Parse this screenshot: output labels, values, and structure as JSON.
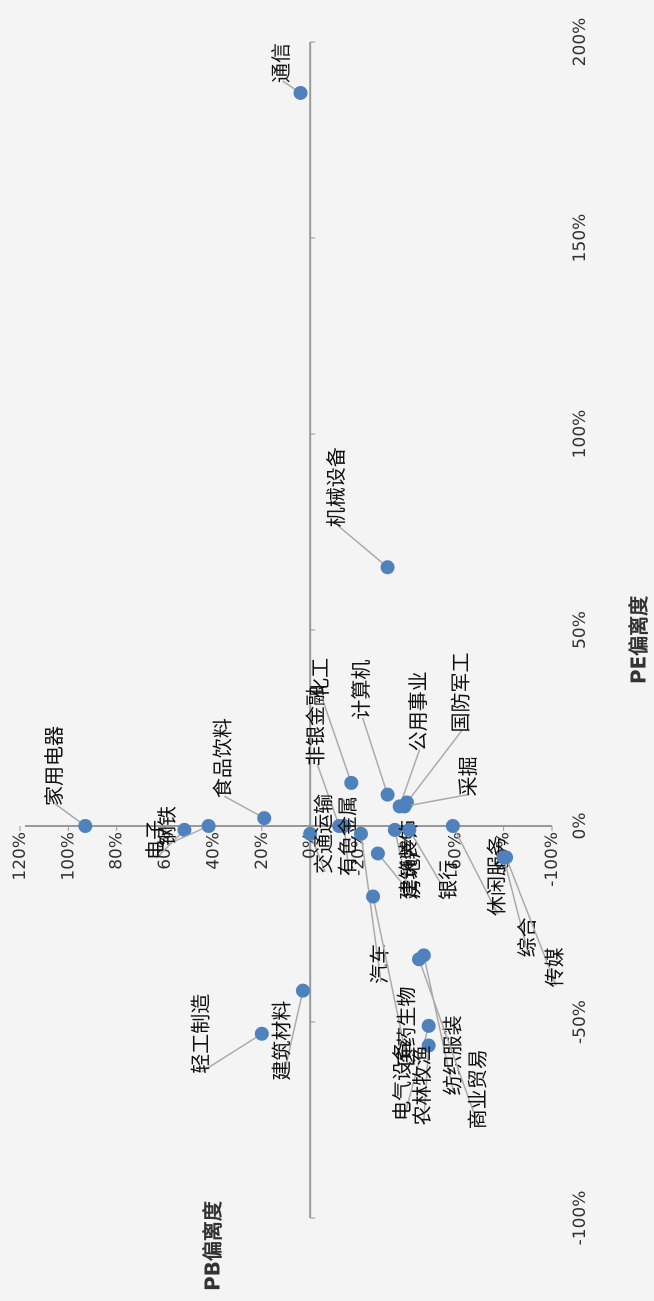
{
  "chart_data": {
    "type": "scatter",
    "x_label": "PE偏离度",
    "y_label": "PB偏离度",
    "labels": [
      "通信",
      "机械设备",
      "化工",
      "计算机",
      "公用事业",
      "国防军工",
      "采掘",
      "非银金融",
      "家用电器",
      "电子",
      "钢铁",
      "食品饮料",
      "交通运输",
      "有色金属",
      "汽车",
      "房地产",
      "建筑装饰",
      "银行",
      "休闲服务",
      "综合",
      "传媒",
      "医药生物",
      "建筑材料",
      "轻工制造",
      "电气设备",
      "农林牧渔",
      "纺织服装",
      "商业贸易"
    ],
    "x": [
      187,
      66,
      11,
      8,
      5,
      6,
      5,
      0,
      0,
      -1,
      0,
      2,
      -2,
      0,
      -2,
      -7,
      -1,
      -1,
      0,
      -8,
      -8,
      -18,
      -42,
      -53,
      -51,
      -56,
      -33,
      -34
    ],
    "values": [
      4,
      -32,
      -17,
      -32,
      -37,
      -40,
      -39,
      -12,
      93,
      52,
      42,
      19,
      0,
      -14,
      -21,
      -28,
      -35,
      -41,
      -59,
      -80,
      -81,
      -26,
      3,
      20,
      -49,
      -49,
      -47,
      -45
    ],
    "color": "#4f81bd",
    "xlim": [
      -100,
      200
    ],
    "ylim": [
      -100,
      120
    ],
    "xticks": [
      {
        "value": -100,
        "label": "-100%"
      },
      {
        "value": -50,
        "label": "-50%"
      },
      {
        "value": 0,
        "label": "0%"
      },
      {
        "value": 50,
        "label": "50%"
      },
      {
        "value": 100,
        "label": "100%"
      },
      {
        "value": 150,
        "label": "150%"
      },
      {
        "value": 200,
        "label": "200%"
      }
    ],
    "yticks": [
      {
        "value": -100,
        "label": "-100%"
      },
      {
        "value": -80,
        "label": "-80%"
      },
      {
        "value": -60,
        "label": "-60%"
      },
      {
        "value": -40,
        "label": "-40%"
      },
      {
        "value": -20,
        "label": "-20%"
      },
      {
        "value": 0,
        "label": "0%"
      },
      {
        "value": 20,
        "label": "20%"
      },
      {
        "value": 40,
        "label": "40%"
      },
      {
        "value": 60,
        "label": "60%"
      },
      {
        "value": 80,
        "label": "80%"
      },
      {
        "value": 100,
        "label": "100%"
      },
      {
        "value": 120,
        "label": "120%"
      }
    ]
  }
}
